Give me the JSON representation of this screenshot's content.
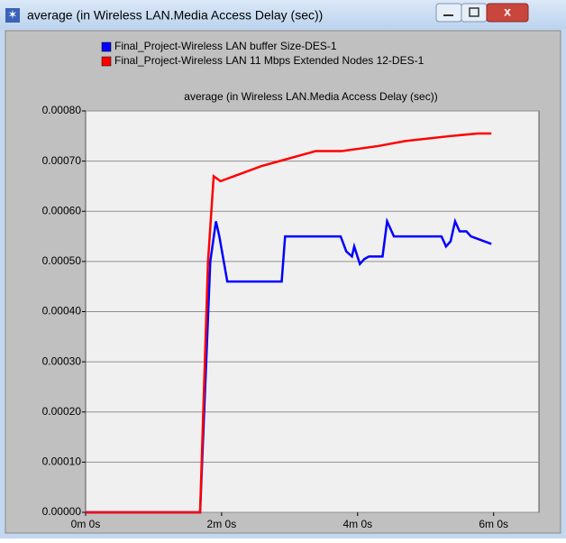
{
  "window": {
    "title": "average (in Wireless LAN.Media Access Delay (sec))"
  },
  "chart_data": {
    "type": "line",
    "title": "average (in Wireless LAN.Media Access Delay (sec))",
    "xlim": [
      0,
      400
    ],
    "ylim": [
      0,
      0.0008
    ],
    "xticks": [
      {
        "value": 0,
        "label": "0m 0s"
      },
      {
        "value": 120,
        "label": "2m 0s"
      },
      {
        "value": 240,
        "label": "4m 0s"
      },
      {
        "value": 360,
        "label": "6m 0s"
      }
    ],
    "yticks": [
      {
        "value": 0,
        "label": "0.00000"
      },
      {
        "value": 0.0001,
        "label": "0.00010"
      },
      {
        "value": 0.0002,
        "label": "0.00020"
      },
      {
        "value": 0.0003,
        "label": "0.00030"
      },
      {
        "value": 0.0004,
        "label": "0.00040"
      },
      {
        "value": 0.0005,
        "label": "0.00050"
      },
      {
        "value": 0.0006,
        "label": "0.00060"
      },
      {
        "value": 0.0007,
        "label": "0.00070"
      },
      {
        "value": 0.0008,
        "label": "0.00080"
      }
    ],
    "grid": true,
    "series": [
      {
        "name": "Final_Project-Wireless LAN  buffer Size-DES-1",
        "color": "#0000ff",
        "x": [
          0,
          101,
          110,
          115,
          118,
          125,
          173,
          176,
          225,
          230,
          235,
          237,
          242,
          246,
          250,
          262,
          266,
          272,
          314,
          318,
          322,
          326,
          330,
          336,
          340,
          358
        ],
        "values": [
          0,
          0,
          0.0005,
          0.00058,
          0.00055,
          0.00046,
          0.00046,
          0.00055,
          0.00055,
          0.00052,
          0.00051,
          0.00053,
          0.000495,
          0.000505,
          0.00051,
          0.00051,
          0.00058,
          0.00055,
          0.00055,
          0.00053,
          0.00054,
          0.00058,
          0.00056,
          0.00056,
          0.00055,
          0.000535
        ]
      },
      {
        "name": "Final_Project-Wireless LAN 11 Mbps Extended Nodes 12-DES-1",
        "color": "#ff0000",
        "x": [
          0,
          101,
          108,
          113,
          119,
          131,
          155,
          171,
          187,
          203,
          226,
          258,
          282,
          322,
          346,
          358
        ],
        "values": [
          0,
          0,
          0.0005,
          0.00067,
          0.00066,
          0.00067,
          0.00069,
          0.0007,
          0.00071,
          0.00072,
          0.00072,
          0.00073,
          0.00074,
          0.00075,
          0.000755,
          0.000755
        ]
      }
    ]
  }
}
